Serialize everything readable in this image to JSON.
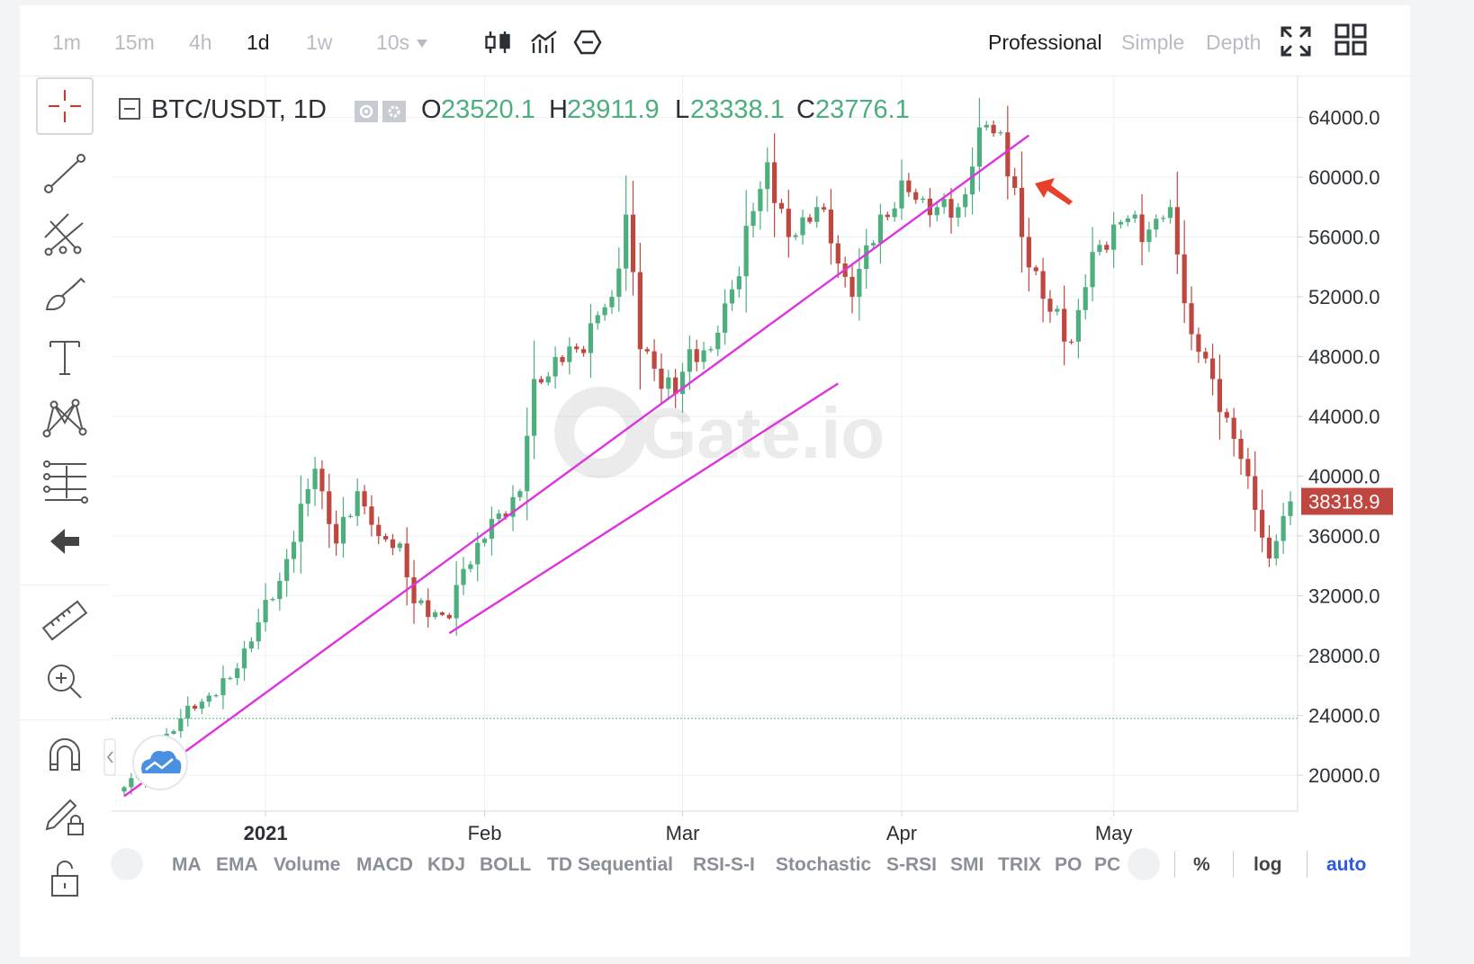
{
  "toolbar": {
    "timeframes": [
      "1m",
      "15m",
      "4h",
      "1d",
      "1w"
    ],
    "active_timeframe": "1d",
    "interval_dropdown": "10s",
    "modes": [
      "Professional",
      "Simple",
      "Depth"
    ],
    "active_mode": "Professional"
  },
  "legend": {
    "symbol": "BTC/USDT, 1D",
    "open_label": "O",
    "open": "23520.1",
    "high_label": "H",
    "high": "23911.9",
    "low_label": "L",
    "low": "23338.1",
    "close_label": "C",
    "close": "23776.1"
  },
  "watermark": "Gate.io",
  "indicators": [
    "MA",
    "EMA",
    "Volume",
    "MACD",
    "KDJ",
    "BOLL",
    "TD Sequential",
    "RSI-S-I",
    "Stochastic",
    "S-RSI",
    "SMI",
    "TRIX",
    "PO",
    "PC"
  ],
  "scale_options": {
    "percent": "%",
    "log": "log",
    "auto": "auto",
    "active": "auto"
  },
  "colors": {
    "up": "#4caf7d",
    "down": "#c0473f",
    "trendline": "#e032e0",
    "arrow": "#e8402a",
    "price_tag": "#c0473f",
    "accent": "#2b59e0"
  },
  "chart_data": {
    "type": "candlestick",
    "title": "BTC/USDT, 1D",
    "x_tick_labels": [
      {
        "label": "2021",
        "date": "2021-01-01"
      },
      {
        "label": "Feb",
        "date": "2021-02-01"
      },
      {
        "label": "Mar",
        "date": "2021-03-01"
      },
      {
        "label": "Apr",
        "date": "2021-04-01"
      },
      {
        "label": "May",
        "date": "2021-05-01"
      }
    ],
    "x_range": [
      "2020-12-12",
      "2021-05-26"
    ],
    "y_ticks": [
      "20000.0",
      "24000.0",
      "28000.0",
      "32000.0",
      "36000.0",
      "40000.0",
      "44000.0",
      "48000.0",
      "52000.0",
      "56000.0",
      "60000.0",
      "64000.0"
    ],
    "ylim": [
      17600,
      66800
    ],
    "current_price": "38318.9",
    "reference_line": 23800,
    "grid": true,
    "anchors": [
      {
        "date": "2020-12-12",
        "close": 19200
      },
      {
        "date": "2020-12-20",
        "close": 23800
      },
      {
        "date": "2020-12-27",
        "close": 26500
      },
      {
        "date": "2021-01-03",
        "close": 33000
      },
      {
        "date": "2021-01-08",
        "close": 40500
      },
      {
        "date": "2021-01-11",
        "close": 35500
      },
      {
        "date": "2021-01-14",
        "close": 39000
      },
      {
        "date": "2021-01-17",
        "close": 36000
      },
      {
        "date": "2021-01-20",
        "close": 35500
      },
      {
        "date": "2021-01-22",
        "close": 31500
      },
      {
        "date": "2021-01-27",
        "close": 30500
      },
      {
        "date": "2021-01-29",
        "close": 33800
      },
      {
        "date": "2021-02-03",
        "close": 37500
      },
      {
        "date": "2021-02-06",
        "close": 39000
      },
      {
        "date": "2021-02-08",
        "close": 46500
      },
      {
        "date": "2021-02-14",
        "close": 48500
      },
      {
        "date": "2021-02-19",
        "close": 52000
      },
      {
        "date": "2021-02-21",
        "close": 57500
      },
      {
        "date": "2021-02-23",
        "close": 48500
      },
      {
        "date": "2021-02-28",
        "close": 45500
      },
      {
        "date": "2021-03-02",
        "close": 48500
      },
      {
        "date": "2021-03-05",
        "close": 48500
      },
      {
        "date": "2021-03-08",
        "close": 52500
      },
      {
        "date": "2021-03-13",
        "close": 61000
      },
      {
        "date": "2021-03-16",
        "close": 56000
      },
      {
        "date": "2021-03-20",
        "close": 58000
      },
      {
        "date": "2021-03-25",
        "close": 52000
      },
      {
        "date": "2021-03-29",
        "close": 57500
      },
      {
        "date": "2021-04-02",
        "close": 59000
      },
      {
        "date": "2021-04-06",
        "close": 58000
      },
      {
        "date": "2021-04-09",
        "close": 58000
      },
      {
        "date": "2021-04-13",
        "close": 63500
      },
      {
        "date": "2021-04-15",
        "close": 63000
      },
      {
        "date": "2021-04-18",
        "close": 56000
      },
      {
        "date": "2021-04-22",
        "close": 51000
      },
      {
        "date": "2021-04-25",
        "close": 49000
      },
      {
        "date": "2021-04-28",
        "close": 55000
      },
      {
        "date": "2021-05-02",
        "close": 57000
      },
      {
        "date": "2021-05-06",
        "close": 56500
      },
      {
        "date": "2021-05-09",
        "close": 58000
      },
      {
        "date": "2021-05-12",
        "close": 49500
      },
      {
        "date": "2021-05-15",
        "close": 46500
      },
      {
        "date": "2021-05-18",
        "close": 42500
      },
      {
        "date": "2021-05-20",
        "close": 40000
      },
      {
        "date": "2021-05-23",
        "close": 34500
      },
      {
        "date": "2021-05-26",
        "close": 38318.9
      }
    ],
    "trendlines": [
      {
        "from": {
          "date": "2020-12-12",
          "price": 18600
        },
        "to": {
          "date": "2021-04-19",
          "price": 62800
        }
      },
      {
        "from": {
          "date": "2021-01-27",
          "price": 29500
        },
        "to": {
          "date": "2021-03-23",
          "price": 46200
        }
      }
    ]
  }
}
